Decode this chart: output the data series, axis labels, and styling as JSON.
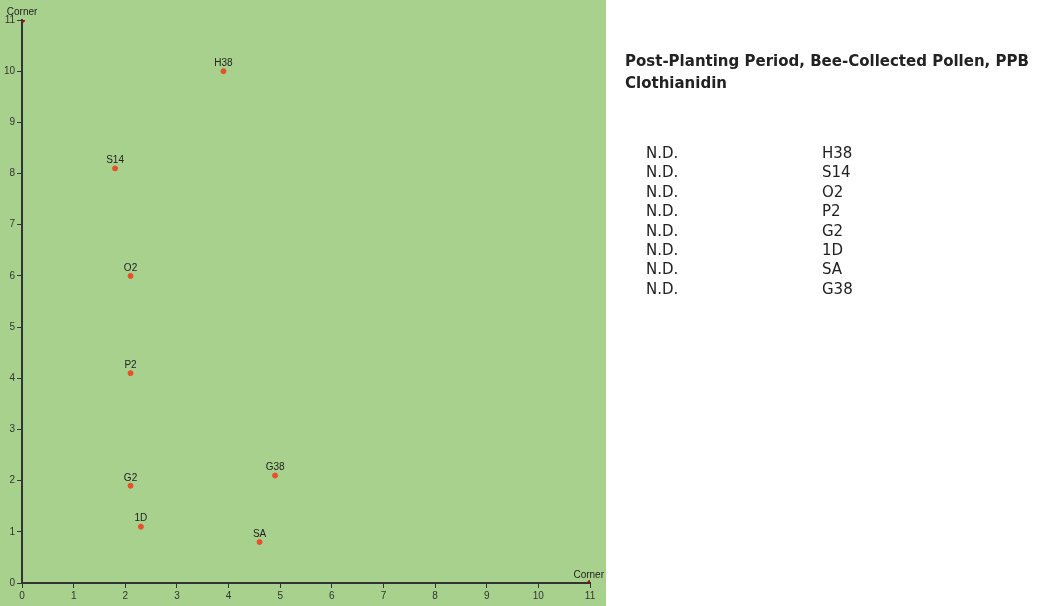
{
  "chart_data": [
    {
      "type": "scatter",
      "series": [
        {
          "color": "#e8502a",
          "x": [
            3.9,
            1.8,
            2.1,
            2.1,
            2.1,
            2.3,
            4.6,
            4.9
          ],
          "values": [
            10,
            8.1,
            6,
            4.1,
            1.9,
            1.1,
            0.8,
            2.1
          ],
          "value_labels": [
            "H38",
            "S14",
            "O2",
            "P2",
            "G2",
            "1D",
            "SA",
            "G38"
          ]
        },
        {
          "color": "#a01010",
          "x": [
            0,
            11
          ],
          "values": [
            11,
            0
          ],
          "value_labels": [
            "Corner",
            "Corner"
          ]
        }
      ],
      "xlim": [
        0,
        11
      ],
      "ylim": [
        0,
        11
      ],
      "xticks": [
        0,
        1,
        2,
        3,
        4,
        5,
        6,
        7,
        8,
        9,
        10,
        11
      ],
      "yticks": [
        0,
        1,
        2,
        3,
        4,
        5,
        6,
        7,
        8,
        9,
        10,
        11
      ],
      "grid": false,
      "marker": "circle"
    },
    {
      "type": "other",
      "title": "Post-Planting Period, Bee-Collected Pollen, PPB Clothianidin",
      "annotations": [
        "N.D.",
        "H38",
        "N.D.",
        "S14",
        "N.D.",
        "O2",
        "N.D.",
        "P2",
        "N.D.",
        "G2",
        "N.D.",
        "1D",
        "N.D.",
        "SA",
        "N.D.",
        "G38"
      ]
    }
  ]
}
